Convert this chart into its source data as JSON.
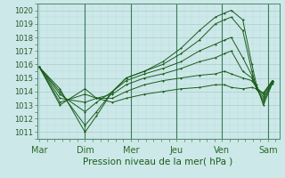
{
  "bg_color": "#cce8e8",
  "grid_color_major": "#aacccc",
  "grid_color_minor": "#bbdddd",
  "line_color": "#1a5c1a",
  "ylabel": "Pression niveau de la mer( hPa )",
  "ylim": [
    1010.5,
    1020.5
  ],
  "yticks": [
    1011,
    1012,
    1013,
    1014,
    1015,
    1016,
    1017,
    1018,
    1019,
    1020
  ],
  "xtick_labels": [
    "Mar",
    "Dim",
    "Mer",
    "Jeu",
    "Ven",
    "Sam"
  ],
  "xtick_positions": [
    0,
    1,
    2,
    3,
    4,
    5
  ],
  "xlim": [
    -0.05,
    5.25
  ],
  "lines_x": [
    [
      0.0,
      0.45,
      1.0,
      1.25,
      1.6,
      1.9,
      2.3,
      2.7,
      3.1,
      3.5,
      3.85,
      4.05,
      4.2,
      4.45,
      4.65,
      4.75,
      4.9,
      5.1
    ],
    [
      0.0,
      0.45,
      1.0,
      1.25,
      1.6,
      1.9,
      2.3,
      2.7,
      3.1,
      3.5,
      3.85,
      4.05,
      4.2,
      4.45,
      4.65,
      4.75,
      4.9,
      5.1
    ],
    [
      0.0,
      0.45,
      1.0,
      1.25,
      1.6,
      1.9,
      2.3,
      2.7,
      3.1,
      3.5,
      3.85,
      4.05,
      4.2,
      4.45,
      4.65,
      4.75,
      4.9,
      5.1
    ],
    [
      0.0,
      0.45,
      1.0,
      1.25,
      1.6,
      1.9,
      2.3,
      2.7,
      3.1,
      3.5,
      3.85,
      4.05,
      4.2,
      4.45,
      4.65,
      4.75,
      4.9,
      5.1
    ],
    [
      0.0,
      0.45,
      1.0,
      1.25,
      1.6,
      1.9,
      2.3,
      2.7,
      3.1,
      3.5,
      3.85,
      4.05,
      4.2,
      4.45,
      4.65,
      4.75,
      4.9,
      5.1
    ],
    [
      0.0,
      0.45,
      1.0,
      1.25,
      1.6,
      1.9,
      2.3,
      2.7,
      3.1,
      3.5,
      3.85,
      4.05,
      4.2,
      4.45,
      4.65,
      4.75,
      4.9,
      5.1
    ]
  ],
  "lines_y": [
    [
      1015.8,
      1014.2,
      1011.0,
      1012.2,
      1014.0,
      1015.0,
      1015.5,
      1016.2,
      1017.2,
      1018.5,
      1019.5,
      1019.8,
      1020.0,
      1019.3,
      1016.0,
      1014.5,
      1013.0,
      1014.6
    ],
    [
      1015.8,
      1014.0,
      1011.5,
      1012.5,
      1014.0,
      1015.0,
      1015.5,
      1016.0,
      1016.8,
      1017.8,
      1019.0,
      1019.3,
      1019.5,
      1018.5,
      1015.5,
      1014.3,
      1013.2,
      1014.7
    ],
    [
      1015.8,
      1013.8,
      1012.5,
      1013.2,
      1014.0,
      1014.8,
      1015.3,
      1015.7,
      1016.2,
      1017.0,
      1017.5,
      1017.8,
      1018.0,
      1016.5,
      1015.2,
      1014.2,
      1013.4,
      1014.7
    ],
    [
      1015.8,
      1013.5,
      1013.2,
      1013.5,
      1013.8,
      1014.5,
      1015.0,
      1015.3,
      1015.7,
      1016.2,
      1016.5,
      1016.8,
      1017.0,
      1015.5,
      1015.0,
      1014.3,
      1013.6,
      1014.8
    ],
    [
      1015.8,
      1013.2,
      1013.8,
      1013.5,
      1013.5,
      1014.0,
      1014.5,
      1014.8,
      1015.0,
      1015.2,
      1015.3,
      1015.5,
      1015.3,
      1015.0,
      1014.8,
      1014.3,
      1013.8,
      1014.8
    ],
    [
      1015.8,
      1013.0,
      1014.2,
      1013.5,
      1013.2,
      1013.5,
      1013.8,
      1014.0,
      1014.2,
      1014.3,
      1014.5,
      1014.5,
      1014.3,
      1014.2,
      1014.3,
      1014.2,
      1013.9,
      1014.8
    ]
  ]
}
